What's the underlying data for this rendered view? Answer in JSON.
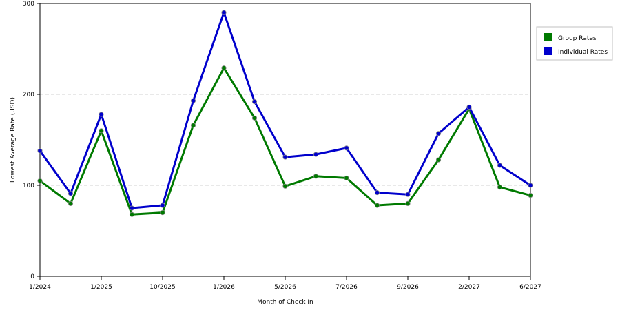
{
  "chart_data": {
    "type": "line",
    "title": "",
    "xlabel": "Month of Check In",
    "ylabel": "Lowest Average Rate (USD)",
    "ylim": [
      0,
      300
    ],
    "yticks": [
      0,
      100,
      200,
      300
    ],
    "grid": "horizontal dashed",
    "legend_position": "right",
    "x_tick_labels": [
      "1/2024",
      "",
      "1/2025",
      "",
      "10/2025",
      "",
      "1/2026",
      "",
      "5/2026",
      "",
      "7/2026",
      "",
      "9/2026",
      "",
      "2/2027",
      "",
      "6/2027"
    ],
    "series": [
      {
        "name": "Group Rates",
        "color": "#007a00",
        "values": [
          105,
          80,
          160,
          68,
          70,
          166,
          229,
          174,
          99,
          110,
          108,
          78,
          80,
          128,
          184,
          98,
          89
        ]
      },
      {
        "name": "Individual Rates",
        "color": "#0000cc",
        "values": [
          138,
          91,
          178,
          75,
          78,
          193,
          290,
          192,
          131,
          134,
          141,
          92,
          90,
          157,
          186,
          122,
          100
        ]
      }
    ]
  }
}
